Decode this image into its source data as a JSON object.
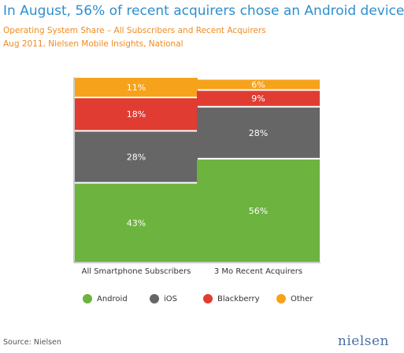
{
  "header": {
    "title": "In August, 56% of recent acquirers chose an Android device",
    "subtitle_line1": "Operating System Share – All Subscribers and Recent Acquirers",
    "subtitle_line2": "Aug 2011, Nielsen Mobile Insights, National"
  },
  "chart_data": {
    "type": "bar",
    "stacked": true,
    "normalized_100": true,
    "categories": [
      "All Smartphone Subscribers",
      "3 Mo Recent Acquirers"
    ],
    "series": [
      {
        "name": "Android",
        "values": [
          43,
          56
        ],
        "labels": [
          "43%",
          "56%"
        ],
        "color": "#6cb33f"
      },
      {
        "name": "iOS",
        "values": [
          28,
          28
        ],
        "labels": [
          "28%",
          "28%"
        ],
        "color": "#666666"
      },
      {
        "name": "Blackberry",
        "values": [
          18,
          9
        ],
        "labels": [
          "18%",
          "9%"
        ],
        "color": "#e03c31"
      },
      {
        "name": "Other",
        "values": [
          11,
          6
        ],
        "labels": [
          "11%",
          "6%"
        ],
        "color": "#f7a21b"
      }
    ],
    "ylim": [
      0,
      100
    ],
    "grid": false,
    "legend_position": "bottom"
  },
  "legend": {
    "items": [
      {
        "label": "Android",
        "color": "#6cb33f"
      },
      {
        "label": "iOS",
        "color": "#666666"
      },
      {
        "label": "Blackberry",
        "color": "#e03c31"
      },
      {
        "label": "Other",
        "color": "#f7a21b"
      }
    ]
  },
  "footer": {
    "source": "Source: Nielsen",
    "brand": "nielsen"
  }
}
